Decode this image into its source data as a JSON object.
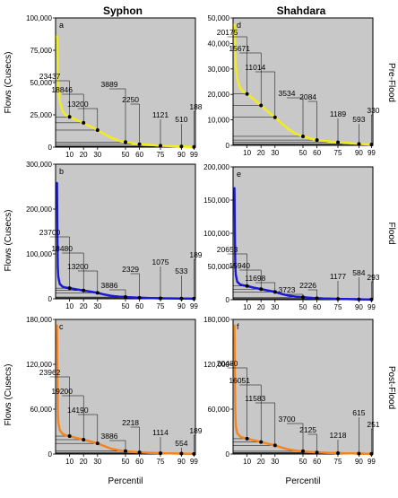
{
  "figure": {
    "columns": [
      "Syphon",
      "Shahdara"
    ],
    "row_labels": [
      "Pre-Flood",
      "Flood",
      "Post-Flood"
    ],
    "y_axis_title": "Flows (Cusecs)",
    "x_axis_title": "Percentil"
  },
  "colors": {
    "panel_bg": "#c8c8c8",
    "pre": "#f2ec1e",
    "flood": "#1a1ad6",
    "post": "#f5841f"
  },
  "chart_data": [
    {
      "id": "a",
      "type": "line",
      "column": "Syphon",
      "row": "Pre-Flood",
      "color": "#f2ec1e",
      "ylim": [
        0,
        100000
      ],
      "yticks": [
        0,
        25000,
        50000,
        75000,
        100000
      ],
      "ytick_labels": [
        "0",
        "25,000",
        "50,000",
        "75,000",
        "100,000"
      ],
      "xticks": [
        10,
        20,
        30,
        50,
        60,
        75,
        90,
        99
      ],
      "curve": [
        [
          1,
          86000
        ],
        [
          1.5,
          60000
        ],
        [
          2,
          45000
        ],
        [
          3,
          35000
        ],
        [
          5,
          28000
        ],
        [
          7,
          25000
        ],
        [
          10,
          23437
        ],
        [
          15,
          21000
        ],
        [
          20,
          18846
        ],
        [
          25,
          16000
        ],
        [
          30,
          13200
        ],
        [
          35,
          10000
        ],
        [
          40,
          7200
        ],
        [
          45,
          5200
        ],
        [
          50,
          3889
        ],
        [
          55,
          3000
        ],
        [
          60,
          2250
        ],
        [
          70,
          1500
        ],
        [
          75,
          1121
        ],
        [
          85,
          700
        ],
        [
          90,
          510
        ],
        [
          95,
          330
        ],
        [
          99,
          188
        ]
      ],
      "annotations": [
        {
          "x": 10,
          "y": 23437,
          "label": "23437"
        },
        {
          "x": 20,
          "y": 18846,
          "label": "18846"
        },
        {
          "x": 30,
          "y": 13200,
          "label": "13200"
        },
        {
          "x": 50,
          "y": 3889,
          "label": "3889"
        },
        {
          "x": 60,
          "y": 2250,
          "label": "2250"
        },
        {
          "x": 75,
          "y": 1121,
          "label": "1121"
        },
        {
          "x": 90,
          "y": 510,
          "label": "510"
        },
        {
          "x": 99,
          "y": 188,
          "label": "188"
        }
      ]
    },
    {
      "id": "d",
      "type": "line",
      "column": "Shahdara",
      "row": "Pre-Flood",
      "color": "#f2ec1e",
      "ylim": [
        0,
        50000
      ],
      "yticks": [
        0,
        10000,
        20000,
        30000,
        40000,
        50000
      ],
      "ytick_labels": [
        "0",
        "10,000",
        "20,000",
        "30,000",
        "40,000",
        "50,000"
      ],
      "xticks": [
        10,
        20,
        30,
        50,
        60,
        75,
        90,
        99
      ],
      "curve": [
        [
          1,
          47500
        ],
        [
          1.5,
          37000
        ],
        [
          2,
          31000
        ],
        [
          3,
          26000
        ],
        [
          5,
          22500
        ],
        [
          7,
          21200
        ],
        [
          10,
          20175
        ],
        [
          15,
          18000
        ],
        [
          20,
          15671
        ],
        [
          25,
          13200
        ],
        [
          30,
          11014
        ],
        [
          35,
          8500
        ],
        [
          40,
          6200
        ],
        [
          45,
          4500
        ],
        [
          50,
          3534
        ],
        [
          55,
          2700
        ],
        [
          60,
          2084
        ],
        [
          70,
          1450
        ],
        [
          75,
          1189
        ],
        [
          85,
          800
        ],
        [
          90,
          593
        ],
        [
          95,
          430
        ],
        [
          99,
          330
        ]
      ],
      "annotations": [
        {
          "x": 10,
          "y": 20175,
          "label": "20175"
        },
        {
          "x": 20,
          "y": 15671,
          "label": "15671"
        },
        {
          "x": 30,
          "y": 11014,
          "label": "11014"
        },
        {
          "x": 50,
          "y": 3534,
          "label": "3534"
        },
        {
          "x": 60,
          "y": 2084,
          "label": "2084"
        },
        {
          "x": 75,
          "y": 1189,
          "label": "1189"
        },
        {
          "x": 90,
          "y": 593,
          "label": "593"
        },
        {
          "x": 99,
          "y": 330,
          "label": "330"
        }
      ]
    },
    {
      "id": "b",
      "type": "line",
      "column": "Syphon",
      "row": "Flood",
      "color": "#1a1ad6",
      "ylim": [
        0,
        300000
      ],
      "yticks": [
        0,
        100000,
        200000,
        300000
      ],
      "ytick_labels": [
        "0",
        "100,000",
        "200,000",
        "300,000"
      ],
      "xticks": [
        10,
        20,
        30,
        50,
        60,
        75,
        90,
        99
      ],
      "curve": [
        [
          1,
          258000
        ],
        [
          1.3,
          150000
        ],
        [
          1.6,
          70000
        ],
        [
          2,
          48000
        ],
        [
          3,
          33000
        ],
        [
          5,
          27000
        ],
        [
          7,
          25000
        ],
        [
          10,
          23700
        ],
        [
          15,
          21000
        ],
        [
          20,
          18480
        ],
        [
          25,
          16000
        ],
        [
          30,
          13200
        ],
        [
          35,
          9500
        ],
        [
          40,
          6500
        ],
        [
          45,
          4800
        ],
        [
          50,
          3886
        ],
        [
          55,
          3000
        ],
        [
          60,
          2329
        ],
        [
          70,
          1400
        ],
        [
          75,
          1075
        ],
        [
          85,
          700
        ],
        [
          90,
          533
        ],
        [
          95,
          330
        ],
        [
          99,
          189
        ]
      ],
      "annotations": [
        {
          "x": 10,
          "y": 23700,
          "label": "23700"
        },
        {
          "x": 20,
          "y": 18480,
          "label": "18480"
        },
        {
          "x": 30,
          "y": 13200,
          "label": "13200"
        },
        {
          "x": 50,
          "y": 3886,
          "label": "3886"
        },
        {
          "x": 60,
          "y": 2329,
          "label": "2329"
        },
        {
          "x": 75,
          "y": 1075,
          "label": "1075"
        },
        {
          "x": 90,
          "y": 533,
          "label": "533"
        },
        {
          "x": 99,
          "y": 189,
          "label": "189"
        }
      ]
    },
    {
      "id": "e",
      "type": "line",
      "column": "Shahdara",
      "row": "Flood",
      "color": "#1a1ad6",
      "ylim": [
        0,
        200000
      ],
      "yticks": [
        0,
        50000,
        100000,
        150000,
        200000
      ],
      "ytick_labels": [
        "0",
        "50,000",
        "100,000",
        "150,000",
        "200,000"
      ],
      "xticks": [
        10,
        20,
        30,
        50,
        60,
        75,
        90,
        99
      ],
      "curve": [
        [
          1,
          168000
        ],
        [
          1.3,
          100000
        ],
        [
          1.6,
          50000
        ],
        [
          2,
          37000
        ],
        [
          3,
          27000
        ],
        [
          5,
          23000
        ],
        [
          7,
          21700
        ],
        [
          10,
          20653
        ],
        [
          15,
          18000
        ],
        [
          20,
          15940
        ],
        [
          25,
          13800
        ],
        [
          30,
          11698
        ],
        [
          35,
          8500
        ],
        [
          40,
          6000
        ],
        [
          45,
          4500
        ],
        [
          50,
          3723
        ],
        [
          55,
          2900
        ],
        [
          60,
          2226
        ],
        [
          70,
          1500
        ],
        [
          75,
          1177
        ],
        [
          85,
          750
        ],
        [
          90,
          584
        ],
        [
          95,
          420
        ],
        [
          99,
          293
        ]
      ],
      "annotations": [
        {
          "x": 10,
          "y": 20653,
          "label": "20653"
        },
        {
          "x": 20,
          "y": 15940,
          "label": "15940"
        },
        {
          "x": 30,
          "y": 11698,
          "label": "11698"
        },
        {
          "x": 50,
          "y": 3723,
          "label": "3723"
        },
        {
          "x": 60,
          "y": 2226,
          "label": "2226"
        },
        {
          "x": 75,
          "y": 1177,
          "label": "1177"
        },
        {
          "x": 90,
          "y": 584,
          "label": "584"
        },
        {
          "x": 99,
          "y": 293,
          "label": "293"
        }
      ]
    },
    {
      "id": "c",
      "type": "line",
      "column": "Syphon",
      "row": "Post-Flood",
      "color": "#f5841f",
      "ylim": [
        0,
        180000
      ],
      "yticks": [
        0,
        60000,
        120000,
        180000
      ],
      "ytick_labels": [
        "0",
        "60,000",
        "120,000",
        "180,000"
      ],
      "xticks": [
        10,
        20,
        30,
        50,
        60,
        75,
        90,
        99
      ],
      "curve": [
        [
          1,
          172000
        ],
        [
          1.3,
          110000
        ],
        [
          1.6,
          60000
        ],
        [
          2,
          42000
        ],
        [
          3,
          32000
        ],
        [
          5,
          27000
        ],
        [
          7,
          25200
        ],
        [
          10,
          23962
        ],
        [
          15,
          21500
        ],
        [
          20,
          19200
        ],
        [
          25,
          16800
        ],
        [
          30,
          14190
        ],
        [
          35,
          10500
        ],
        [
          40,
          7000
        ],
        [
          45,
          5000
        ],
        [
          50,
          3886
        ],
        [
          55,
          3000
        ],
        [
          60,
          2218
        ],
        [
          70,
          1400
        ],
        [
          75,
          1114
        ],
        [
          85,
          700
        ],
        [
          90,
          554
        ],
        [
          95,
          340
        ],
        [
          99,
          189
        ]
      ],
      "annotations": [
        {
          "x": 10,
          "y": 23962,
          "label": "23962"
        },
        {
          "x": 20,
          "y": 19200,
          "label": "19200"
        },
        {
          "x": 30,
          "y": 14190,
          "label": "14190"
        },
        {
          "x": 50,
          "y": 3886,
          "label": "3886"
        },
        {
          "x": 60,
          "y": 2218,
          "label": "2218"
        },
        {
          "x": 75,
          "y": 1114,
          "label": "1114"
        },
        {
          "x": 90,
          "y": 554,
          "label": "554"
        },
        {
          "x": 99,
          "y": 189,
          "label": "189"
        }
      ]
    },
    {
      "id": "f",
      "type": "line",
      "column": "Shahdara",
      "row": "Post-Flood",
      "color": "#f5841f",
      "ylim": [
        0,
        180000
      ],
      "yticks": [
        0,
        60000,
        120000,
        180000
      ],
      "ytick_labels": [
        "0",
        "60,000",
        "120,000",
        "180,000"
      ],
      "xticks": [
        10,
        20,
        30,
        50,
        60,
        75,
        90,
        99
      ],
      "curve": [
        [
          1,
          172000
        ],
        [
          1.3,
          100000
        ],
        [
          1.6,
          55000
        ],
        [
          2,
          37000
        ],
        [
          3,
          28000
        ],
        [
          5,
          23500
        ],
        [
          7,
          21800
        ],
        [
          10,
          20480
        ],
        [
          15,
          18300
        ],
        [
          20,
          16051
        ],
        [
          25,
          13800
        ],
        [
          30,
          11583
        ],
        [
          35,
          8500
        ],
        [
          40,
          6000
        ],
        [
          45,
          4500
        ],
        [
          50,
          3700
        ],
        [
          55,
          2800
        ],
        [
          60,
          2125
        ],
        [
          70,
          1500
        ],
        [
          75,
          1218
        ],
        [
          85,
          800
        ],
        [
          90,
          615
        ],
        [
          95,
          400
        ],
        [
          99,
          251
        ]
      ],
      "annotations": [
        {
          "x": 10,
          "y": 20480,
          "label": "20480"
        },
        {
          "x": 20,
          "y": 16051,
          "label": "16051"
        },
        {
          "x": 30,
          "y": 11583,
          "label": "11583"
        },
        {
          "x": 50,
          "y": 3700,
          "label": "3700"
        },
        {
          "x": 60,
          "y": 2125,
          "label": "2125"
        },
        {
          "x": 75,
          "y": 1218,
          "label": "1218"
        },
        {
          "x": 90,
          "y": 615,
          "label": "615"
        },
        {
          "x": 99,
          "y": 251,
          "label": "251"
        }
      ]
    }
  ]
}
